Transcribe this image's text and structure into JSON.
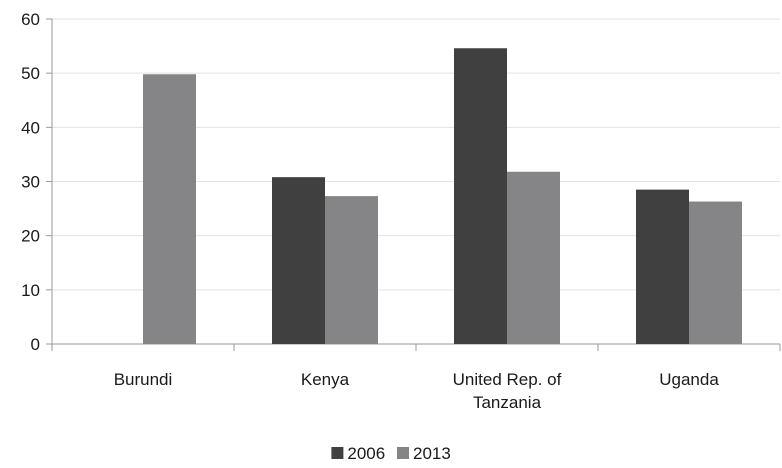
{
  "chart_data": {
    "type": "bar",
    "categories": [
      "Burundi",
      "Kenya",
      "United Rep. of Tanzania",
      "Uganda"
    ],
    "category_lines": [
      [
        "Burundi"
      ],
      [
        "Kenya"
      ],
      [
        "United Rep. of",
        "Tanzania"
      ],
      [
        "Uganda"
      ]
    ],
    "series": [
      {
        "name": "2006",
        "color": "#404040",
        "values": [
          null,
          30.8,
          54.6,
          28.5
        ]
      },
      {
        "name": "2013",
        "color": "#858587",
        "values": [
          49.8,
          27.3,
          31.8,
          26.3
        ]
      }
    ],
    "ylim": [
      0,
      60
    ],
    "yticks": [
      0,
      10,
      20,
      30,
      40,
      50,
      60
    ],
    "grid": true,
    "legend_position": "bottom-center",
    "title": "",
    "xlabel": "",
    "ylabel": ""
  }
}
